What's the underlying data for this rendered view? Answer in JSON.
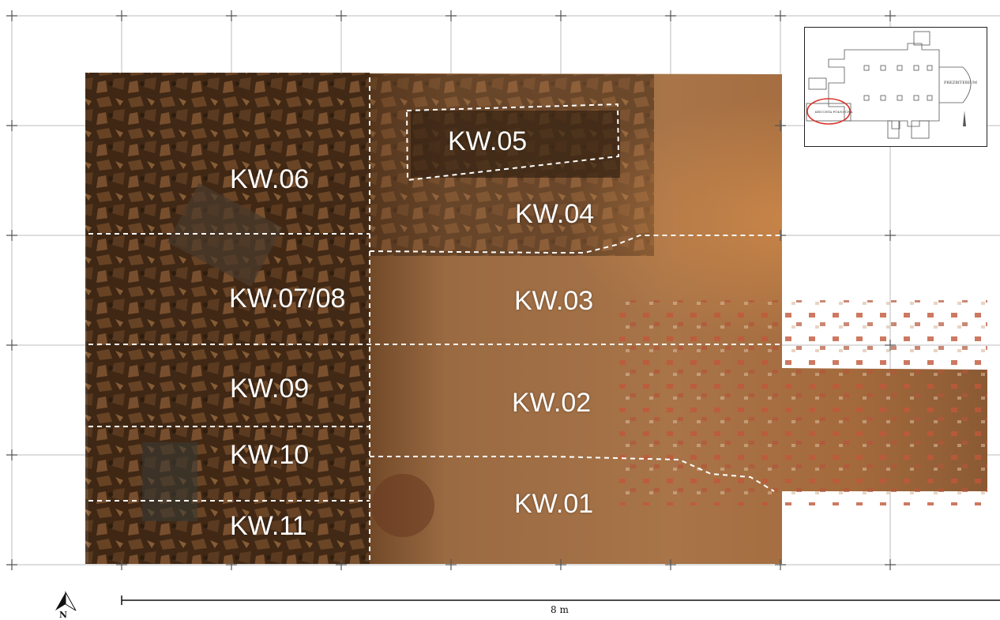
{
  "sections": [
    {
      "id": "KW.05",
      "label": "KW.05"
    },
    {
      "id": "KW.06",
      "label": "KW.06"
    },
    {
      "id": "KW.04",
      "label": "KW.04"
    },
    {
      "id": "KW.07/08",
      "label": "KW.07/08"
    },
    {
      "id": "KW.03",
      "label": "KW.03"
    },
    {
      "id": "KW.09",
      "label": "KW.09"
    },
    {
      "id": "KW.02",
      "label": "KW.02"
    },
    {
      "id": "KW.10",
      "label": "KW.10"
    },
    {
      "id": "KW.01",
      "label": "KW.01"
    },
    {
      "id": "KW.11",
      "label": "KW.11"
    }
  ],
  "inset_map": {
    "presbytery_label": "PREZBITERIUM",
    "highlighted_room_label": "KRUCHTA PÓŁNOCNA"
  },
  "north_arrow": {
    "letter": "N"
  },
  "scale_bar": {
    "label": "8 m"
  },
  "colors": {
    "highlight_ellipse": "#d8332a",
    "section_line": "#ffffff",
    "label_text": "#ffffff",
    "grid_line": "#bdbdbd"
  },
  "icons": [
    "north-arrow-icon",
    "plus-grid-marker-icon"
  ]
}
